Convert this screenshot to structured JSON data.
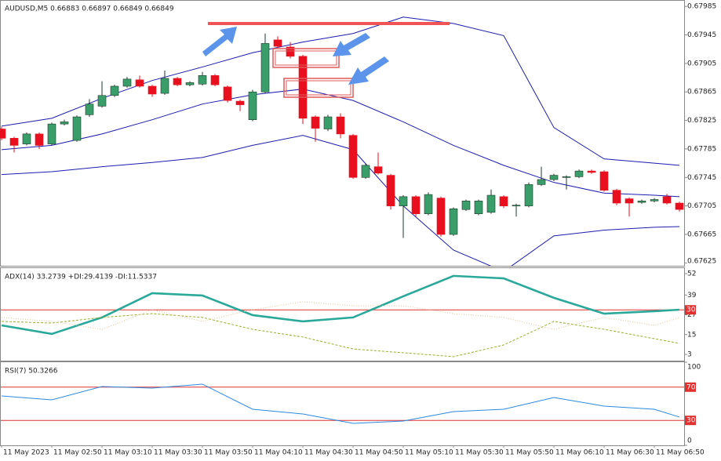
{
  "chart_data": [
    {
      "type": "candlestick",
      "title": "AUDUSD,M5  0.66883 0.66897 0.66849 0.66849",
      "categories": [
        "11 May 2023",
        null,
        null,
        null,
        "11 May 02:50",
        null,
        null,
        null,
        "11 May 03:10",
        null,
        null,
        null,
        "11 May 03:30",
        null,
        null,
        null,
        "11 May 03:50",
        null,
        null,
        null,
        "11 May 04:10",
        null,
        null,
        null,
        "11 May 04:30",
        null,
        null,
        null,
        "11 May 04:50",
        null,
        null,
        null,
        "11 May 05:10",
        null,
        null,
        null,
        "11 May 05:30",
        null,
        null,
        null,
        "11 May 05:50",
        null,
        null,
        null,
        "11 May 06:10",
        null,
        null,
        null,
        "11 May 06:30",
        null,
        null,
        null,
        "11 May 06:50",
        null,
        null
      ],
      "open": [
        0.67813,
        0.678,
        0.67792,
        0.67806,
        0.67792,
        0.6782,
        0.67797,
        0.67833,
        0.67845,
        0.6786,
        0.67873,
        0.67882,
        0.67873,
        0.67863,
        0.67884,
        0.67875,
        0.67876,
        0.67888,
        0.67872,
        0.67852,
        0.67826,
        0.67865,
        0.67938,
        0.67928,
        0.67915,
        0.6783,
        0.67813,
        0.6783,
        0.67804,
        0.67745,
        0.6776,
        0.67748,
        0.67705,
        0.67718,
        0.67694,
        0.67716,
        0.67665,
        0.677,
        0.67694,
        0.67696,
        0.67718,
        0.67705,
        0.67705,
        0.67735,
        0.67742,
        0.67745,
        0.67746,
        0.67754,
        0.67753,
        0.67727,
        0.67715,
        0.6771,
        0.67712,
        0.67718,
        0.67709
      ],
      "high": [
        0.67816,
        0.67802,
        0.67808,
        0.67808,
        0.67822,
        0.67826,
        0.67832,
        0.67855,
        0.6788,
        0.67875,
        0.67886,
        0.67888,
        0.67875,
        0.67895,
        0.67886,
        0.6788,
        0.67893,
        0.6789,
        0.67874,
        0.67854,
        0.67868,
        0.67947,
        0.67943,
        0.67935,
        0.67917,
        0.67832,
        0.67833,
        0.67835,
        0.67806,
        0.67765,
        0.6778,
        0.6775,
        0.6772,
        0.6772,
        0.67724,
        0.67718,
        0.67703,
        0.67714,
        0.67714,
        0.67728,
        0.6772,
        0.67708,
        0.67738,
        0.6776,
        0.6775,
        0.67748,
        0.67756,
        0.67756,
        0.67755,
        0.67729,
        0.67717,
        0.67714,
        0.67716,
        0.67722,
        0.67711
      ],
      "low": [
        0.67797,
        0.6778,
        0.6779,
        0.67785,
        0.6779,
        0.67818,
        0.67795,
        0.6783,
        0.67843,
        0.67858,
        0.67871,
        0.67871,
        0.67858,
        0.67861,
        0.67873,
        0.67873,
        0.67874,
        0.67873,
        0.6785,
        0.67838,
        0.67824,
        0.67863,
        0.67927,
        0.67912,
        0.6782,
        0.67795,
        0.6781,
        0.678,
        0.67743,
        0.67743,
        0.67749,
        0.677,
        0.6766,
        0.6769,
        0.67692,
        0.67662,
        0.67663,
        0.67698,
        0.67692,
        0.67694,
        0.67702,
        0.6769,
        0.67703,
        0.67733,
        0.6774,
        0.67728,
        0.67744,
        0.6775,
        0.67725,
        0.67706,
        0.6769,
        0.67708,
        0.6771,
        0.67707,
        0.67697
      ],
      "close": [
        0.678,
        0.6779,
        0.67806,
        0.6779,
        0.6782,
        0.67823,
        0.6783,
        0.67848,
        0.6786,
        0.67873,
        0.67883,
        0.67873,
        0.67862,
        0.67884,
        0.67875,
        0.67878,
        0.67888,
        0.67875,
        0.67853,
        0.67847,
        0.67865,
        0.67933,
        0.67929,
        0.67915,
        0.67828,
        0.67814,
        0.6783,
        0.67806,
        0.67745,
        0.67762,
        0.67751,
        0.67705,
        0.67718,
        0.67694,
        0.67721,
        0.67665,
        0.67701,
        0.67712,
        0.67712,
        0.6772,
        0.67705,
        0.67706,
        0.67735,
        0.67742,
        0.67748,
        0.67746,
        0.67754,
        0.67752,
        0.67727,
        0.67709,
        0.67709,
        0.67712,
        0.67714,
        0.67709,
        0.677
      ],
      "up_color": "#3a9e6a",
      "down_color": "#e8101e",
      "series": [
        {
          "color": "#1c1cae",
          "x": [
            0,
            4,
            8,
            12,
            16,
            20,
            24,
            28,
            32,
            36,
            40,
            44,
            48,
            52,
            54
          ],
          "values": [
            0.67817,
            0.67828,
            0.67856,
            0.67881,
            0.679,
            0.6792,
            0.67935,
            0.67947,
            0.6797,
            0.67961,
            0.67944,
            0.67815,
            0.67771,
            0.67765,
            0.67762
          ]
        },
        {
          "color": "#1c1cae",
          "x": [
            0,
            4,
            8,
            12,
            16,
            20,
            24,
            28,
            32,
            36,
            40,
            44,
            48,
            52,
            54
          ],
          "values": [
            0.67784,
            0.6779,
            0.67806,
            0.67826,
            0.67848,
            0.67861,
            0.67869,
            0.67853,
            0.67823,
            0.6779,
            0.67762,
            0.67738,
            0.67723,
            0.6772,
            0.67718
          ]
        },
        {
          "color": "#1c1cae",
          "x": [
            0,
            4,
            8,
            12,
            16,
            20,
            24,
            28,
            32,
            36,
            40,
            44,
            48,
            52,
            54
          ],
          "values": [
            0.67749,
            0.67753,
            0.6776,
            0.67766,
            0.67773,
            0.6779,
            0.67804,
            0.67784,
            0.67705,
            0.67643,
            0.67613,
            0.67663,
            0.67671,
            0.67675,
            0.67676
          ]
        }
      ],
      "ylim": [
        0.67621,
        0.67994
      ],
      "yticks": [
        0.67985,
        0.67945,
        0.67905,
        0.67865,
        0.67825,
        0.67785,
        0.67745,
        0.67705,
        0.67665,
        0.67625
      ]
    },
    {
      "type": "line",
      "title": "ADX(14) 33.2739 +DI:29.4139 -DI:11.5337",
      "series": [
        {
          "color": "#2aa89a",
          "x": [
            0,
            4,
            8,
            12,
            16,
            20,
            24,
            28,
            32,
            36,
            40,
            44,
            48,
            52,
            54
          ],
          "values": [
            20.6,
            15.4,
            25.4,
            40.1,
            38.7,
            26.8,
            23.0,
            25.4,
            38.2,
            50.6,
            49.1,
            37.3,
            27.7,
            29.2,
            30.1
          ]
        },
        {
          "color": "#9aac2a",
          "x": [
            0,
            4,
            8,
            12,
            16,
            20,
            24,
            28,
            32,
            36,
            40,
            44,
            48,
            52,
            54
          ],
          "values": [
            23.0,
            22.0,
            25.4,
            27.7,
            25.4,
            18.2,
            13.5,
            6.3,
            4.0,
            1.6,
            8.7,
            23.0,
            18.2,
            12.5,
            9.7
          ]
        },
        {
          "color": "#e6c39a",
          "x": [
            0,
            4,
            8,
            12,
            16,
            20,
            24,
            28,
            32,
            36,
            40,
            44,
            48,
            52,
            54
          ],
          "values": [
            25.4,
            23.0,
            18.2,
            30.1,
            23.0,
            30.1,
            34.9,
            32.5,
            32.5,
            27.7,
            25.4,
            18.2,
            25.4,
            20.6,
            25.4
          ]
        }
      ],
      "levels": [
        30
      ],
      "level_color": "#e03030",
      "ylim": [
        -0.8,
        55.3
      ],
      "yticks": [
        52,
        39,
        27,
        15,
        3
      ]
    },
    {
      "type": "line",
      "title": "RSI(7) 50.3266",
      "series": [
        {
          "color": "#2a8adf",
          "x": [
            0,
            4,
            8,
            12,
            16,
            20,
            24,
            28,
            32,
            36,
            40,
            44,
            48,
            52,
            54
          ],
          "values": [
            59.4,
            54.7,
            70.8,
            68.9,
            73.6,
            43.4,
            37.7,
            26.4,
            29.2,
            40.6,
            43.4,
            57.5,
            47.2,
            43.4,
            34.0
          ]
        }
      ],
      "levels": [
        70,
        30
      ],
      "level_color": "#e03030",
      "ylim": [
        0,
        100
      ],
      "yticks": [
        100,
        70,
        30,
        0
      ]
    }
  ]
}
